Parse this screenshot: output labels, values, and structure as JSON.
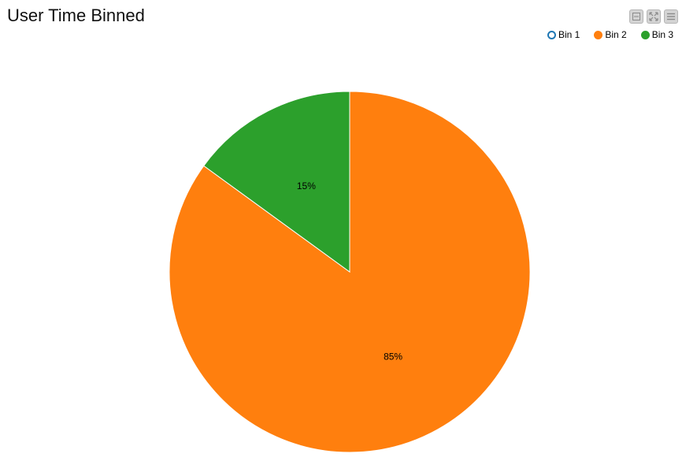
{
  "chart_data": {
    "type": "pie",
    "title": "User Time Binned",
    "categories": [
      "Bin 1",
      "Bin 2",
      "Bin 3"
    ],
    "values": [
      0,
      85,
      15
    ],
    "labels": [
      "",
      "85%",
      "15%"
    ],
    "colors": [
      "#1f77b4",
      "#ff7f0e",
      "#2ca02c"
    ],
    "legend": {
      "position": "top-right",
      "items": [
        {
          "label": "Bin 1",
          "color": "#1f77b4",
          "enabled": false
        },
        {
          "label": "Bin 2",
          "color": "#ff7f0e",
          "enabled": true
        },
        {
          "label": "Bin 3",
          "color": "#2ca02c",
          "enabled": true
        }
      ]
    }
  },
  "toolbar": {
    "buttons": [
      {
        "icon": "minimize-icon"
      },
      {
        "icon": "fullscreen-icon"
      },
      {
        "icon": "menu-icon"
      }
    ]
  }
}
